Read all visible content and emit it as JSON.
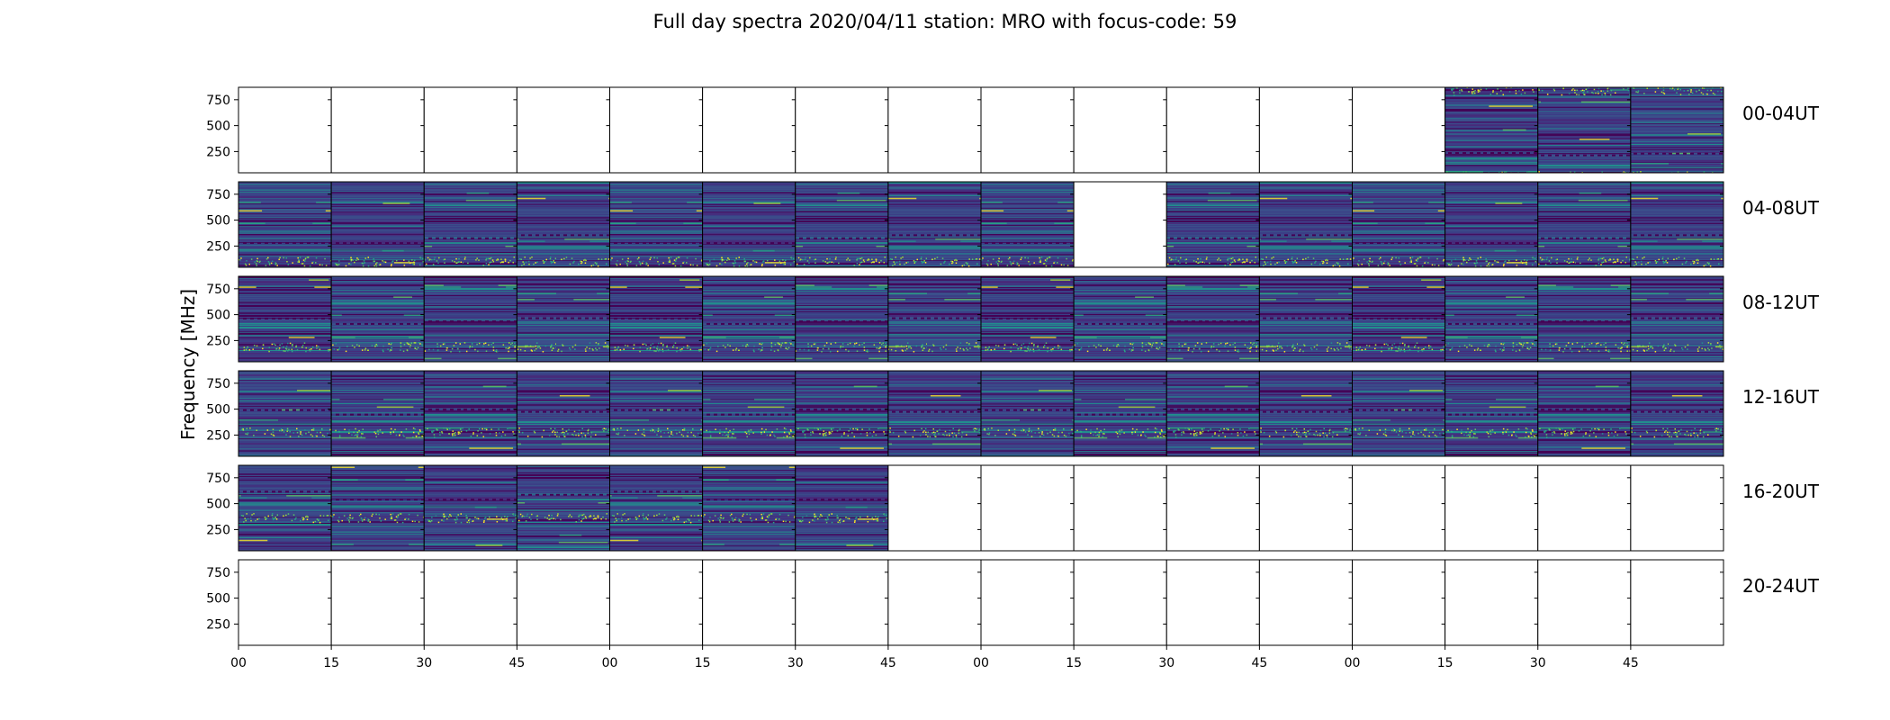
{
  "chart_data": {
    "type": "heatmap",
    "title": "Full day spectra 2020/04/11 station: MRO with focus-code: 59",
    "ylabel": "Frequency [MHz]",
    "yticks": [
      "750",
      "500",
      "250"
    ],
    "ytick_values": [
      750,
      500,
      250
    ],
    "ylim": [
      45,
      870
    ],
    "xticks": [
      "00",
      "15",
      "30",
      "45",
      "00",
      "15",
      "30",
      "45",
      "00",
      "15",
      "30",
      "45",
      "00",
      "15",
      "30",
      "45"
    ],
    "rows": [
      {
        "label": "00-04UT",
        "filled": [
          0,
          0,
          0,
          0,
          0,
          0,
          0,
          0,
          0,
          0,
          0,
          0,
          0,
          1,
          1,
          1
        ]
      },
      {
        "label": "04-08UT",
        "filled": [
          1,
          1,
          1,
          1,
          1,
          1,
          1,
          1,
          1,
          0,
          1,
          1,
          1,
          1,
          1,
          1
        ]
      },
      {
        "label": "08-12UT",
        "filled": [
          1,
          1,
          1,
          1,
          1,
          1,
          1,
          1,
          1,
          1,
          1,
          1,
          1,
          1,
          1,
          1
        ]
      },
      {
        "label": "12-16UT",
        "filled": [
          1,
          1,
          1,
          1,
          1,
          1,
          1,
          1,
          1,
          1,
          1,
          1,
          1,
          1,
          1,
          1
        ]
      },
      {
        "label": "16-20UT",
        "filled": [
          1,
          1,
          1,
          1,
          1,
          1,
          1,
          0,
          0,
          0,
          0,
          0,
          0,
          0,
          0,
          0
        ]
      },
      {
        "label": "20-24UT",
        "filled": [
          0,
          0,
          0,
          0,
          0,
          0,
          0,
          0,
          0,
          0,
          0,
          0,
          0,
          0,
          0,
          0
        ]
      }
    ],
    "colormap": [
      "#440154",
      "#472a7a",
      "#3b518b",
      "#2c718e",
      "#21908d",
      "#27ad81",
      "#5cc863",
      "#aadc32",
      "#fde725"
    ]
  }
}
